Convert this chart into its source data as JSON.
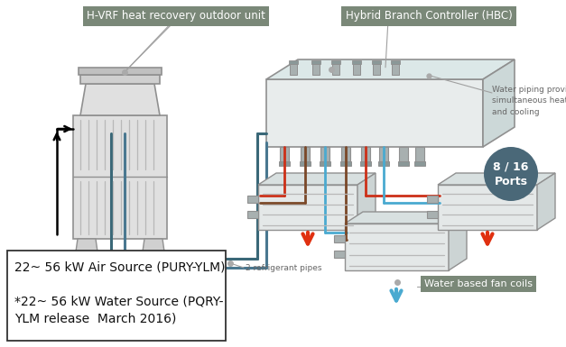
{
  "bg_color": "#ffffff",
  "label_box_color": "#7a8878",
  "label_text_color": "#ffffff",
  "hbc_label": "Hybrid Branch Controller (HBC)",
  "hvrf_label": "H-VRF heat recovery outdoor unit",
  "refrig_label": "2 refrigerant pipes",
  "water_label": "Water piping providing\nsimultaneous heating\nand cooling",
  "fancoil_label": "Water based fan coils",
  "info_line1": "22~ 56 kW Air Source (PURY-YLM)",
  "info_line2": "*22~ 56 kW Water Source (PQRY-\nYLM release  March 2016)",
  "ports_text": "8 / 16\nPorts",
  "ports_color": "#4a6878",
  "pipe_blue": "#4aaad0",
  "pipe_red": "#cc3018",
  "pipe_brown": "#7a4828",
  "pipe_teal1": "#3a6878",
  "pipe_teal2": "#4a7890",
  "unit_light": "#e0e0e0",
  "unit_mid": "#d0d0d0",
  "unit_dark": "#c0c0c0",
  "unit_edge": "#909090",
  "hbc_front": "#e8ecec",
  "hbc_top": "#dce8e8",
  "hbc_right": "#ccd8d8",
  "hbc_edge": "#909090",
  "stub_fill": "#a8b0b0",
  "stub_edge": "#909090",
  "fc_front": "#e4e8e8",
  "fc_top": "#d8e0e0",
  "fc_right": "#ccd4d4",
  "fc_edge": "#909090",
  "arrow_orange": "#e03010",
  "arrow_blue": "#4aaad0",
  "leader_color": "#a0a0a0",
  "text_dark": "#333333",
  "text_mid": "#666666",
  "grille_color": "#b8b8b8",
  "info_border": "#333333"
}
